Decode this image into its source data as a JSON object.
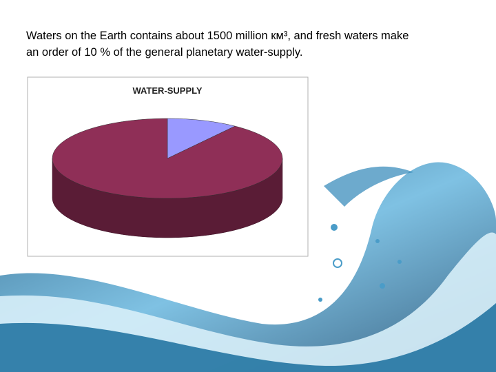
{
  "slide_text": [
    "Waters on the Earth contains about 1500 million км³, and fresh waters make",
    "an order of 10 % of the general planetary water-supply."
  ],
  "chart_data": {
    "type": "pie",
    "title": "WATER-SUPPLY",
    "categories": [
      null,
      null
    ],
    "values": [
      10,
      90
    ],
    "colors": [
      "#9999ff",
      "#8f2f57"
    ],
    "side_colors": [
      "#6b6bc4",
      "#5a1c36"
    ],
    "three_d": true
  }
}
